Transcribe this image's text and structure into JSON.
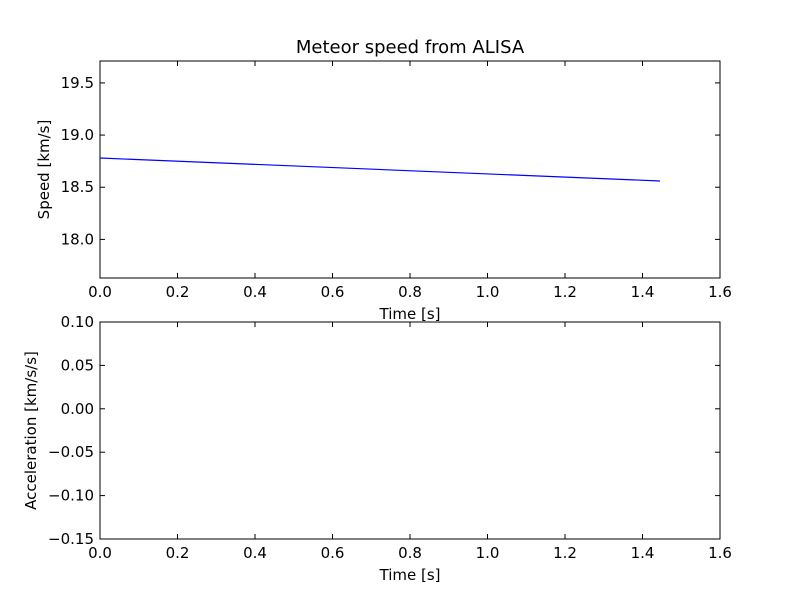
{
  "chart_data": [
    {
      "type": "line",
      "title": "Meteor speed from  ALISA",
      "xlabel": "Time [s]",
      "ylabel": "Speed [km/s]",
      "xlim": [
        0,
        1.6
      ],
      "ylim": [
        17.63,
        19.71
      ],
      "grid": false,
      "x_ticks": [
        0.0,
        0.2,
        0.4,
        0.6,
        0.8,
        1.0,
        1.2,
        1.4,
        1.6
      ],
      "x_tick_labels": [
        "0.0",
        "0.2",
        "0.4",
        "0.6",
        "0.8",
        "1.0",
        "1.2",
        "1.4",
        "1.6"
      ],
      "y_ticks": [
        18.0,
        18.5,
        19.0,
        19.5
      ],
      "y_tick_labels": [
        "18.0",
        "18.5",
        "19.0",
        "19.5"
      ],
      "series": [
        {
          "color": "#0000ff",
          "x": [
            0.0,
            1.445
          ],
          "y": [
            18.78,
            18.56
          ]
        }
      ]
    },
    {
      "type": "line",
      "title": "",
      "xlabel": "Time [s]",
      "ylabel": "Acceleration [km/s/s]",
      "xlim": [
        0,
        1.6
      ],
      "ylim": [
        -0.15,
        0.1
      ],
      "grid": false,
      "x_ticks": [
        0.0,
        0.2,
        0.4,
        0.6,
        0.8,
        1.0,
        1.2,
        1.4,
        1.6
      ],
      "x_tick_labels": [
        "0.0",
        "0.2",
        "0.4",
        "0.6",
        "0.8",
        "1.0",
        "1.2",
        "1.4",
        "1.6"
      ],
      "y_ticks": [
        0.1,
        0.05,
        0.0,
        -0.05,
        -0.1,
        -0.15
      ],
      "y_tick_labels": [
        "0.10",
        "0.05",
        "0.00",
        "−0.05",
        "−0.10",
        "−0.15"
      ],
      "series": []
    }
  ]
}
